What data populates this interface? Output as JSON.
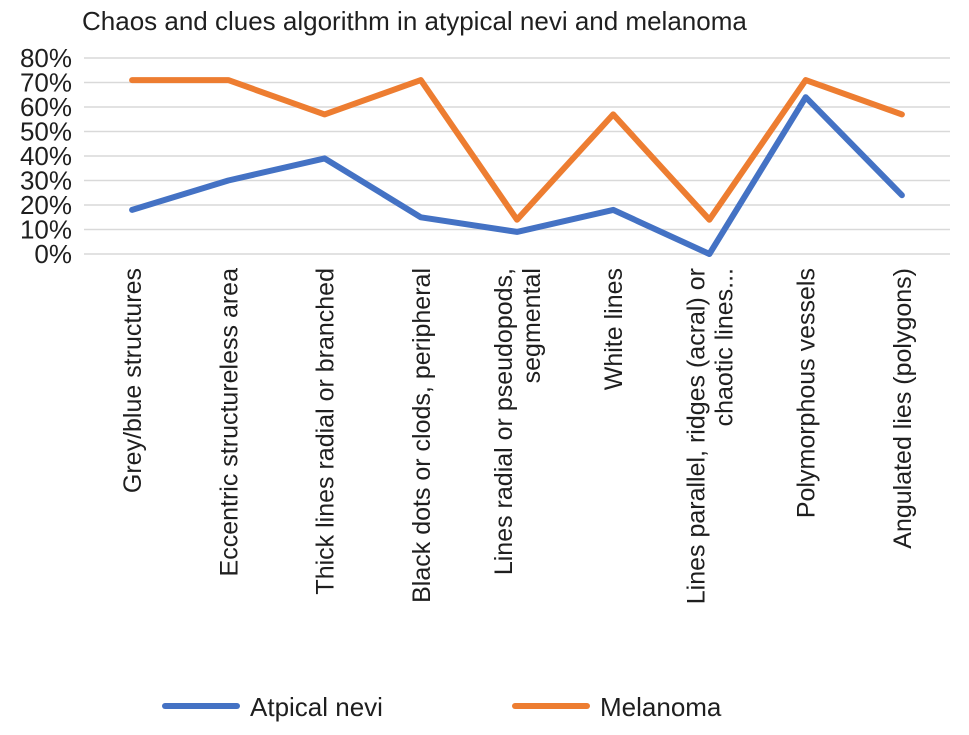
{
  "chart_data": {
    "type": "line",
    "title": "Chaos and clues algorithm in atypical nevi and melanoma",
    "xlabel": "",
    "ylabel": "",
    "ylim": [
      0,
      0.8
    ],
    "yticks": [
      "0%",
      "10%",
      "20%",
      "30%",
      "40%",
      "50%",
      "60%",
      "70%",
      "80%"
    ],
    "grid": true,
    "legend_position": "bottom",
    "categories": [
      [
        "Grey/blue structures"
      ],
      [
        "Eccentric structureless area"
      ],
      [
        "Thick lines radial or branched"
      ],
      [
        "Black dots or clods, peripheral"
      ],
      [
        "Lines radial or pseudopods,",
        "segmental"
      ],
      [
        "White lines"
      ],
      [
        "Lines parallel, ridges (acral) or",
        "chaotic lines..."
      ],
      [
        "Polymorphous vessels"
      ],
      [
        "Angulated lies (polygons)"
      ]
    ],
    "series": [
      {
        "name": "Atpical nevi",
        "color": "#4472c4",
        "values": [
          0.18,
          0.3,
          0.39,
          0.15,
          0.09,
          0.18,
          0.0,
          0.64,
          0.24
        ]
      },
      {
        "name": "Melanoma",
        "color": "#ed7d31",
        "values": [
          0.71,
          0.71,
          0.57,
          0.71,
          0.14,
          0.57,
          0.14,
          0.71,
          0.57
        ]
      }
    ]
  }
}
